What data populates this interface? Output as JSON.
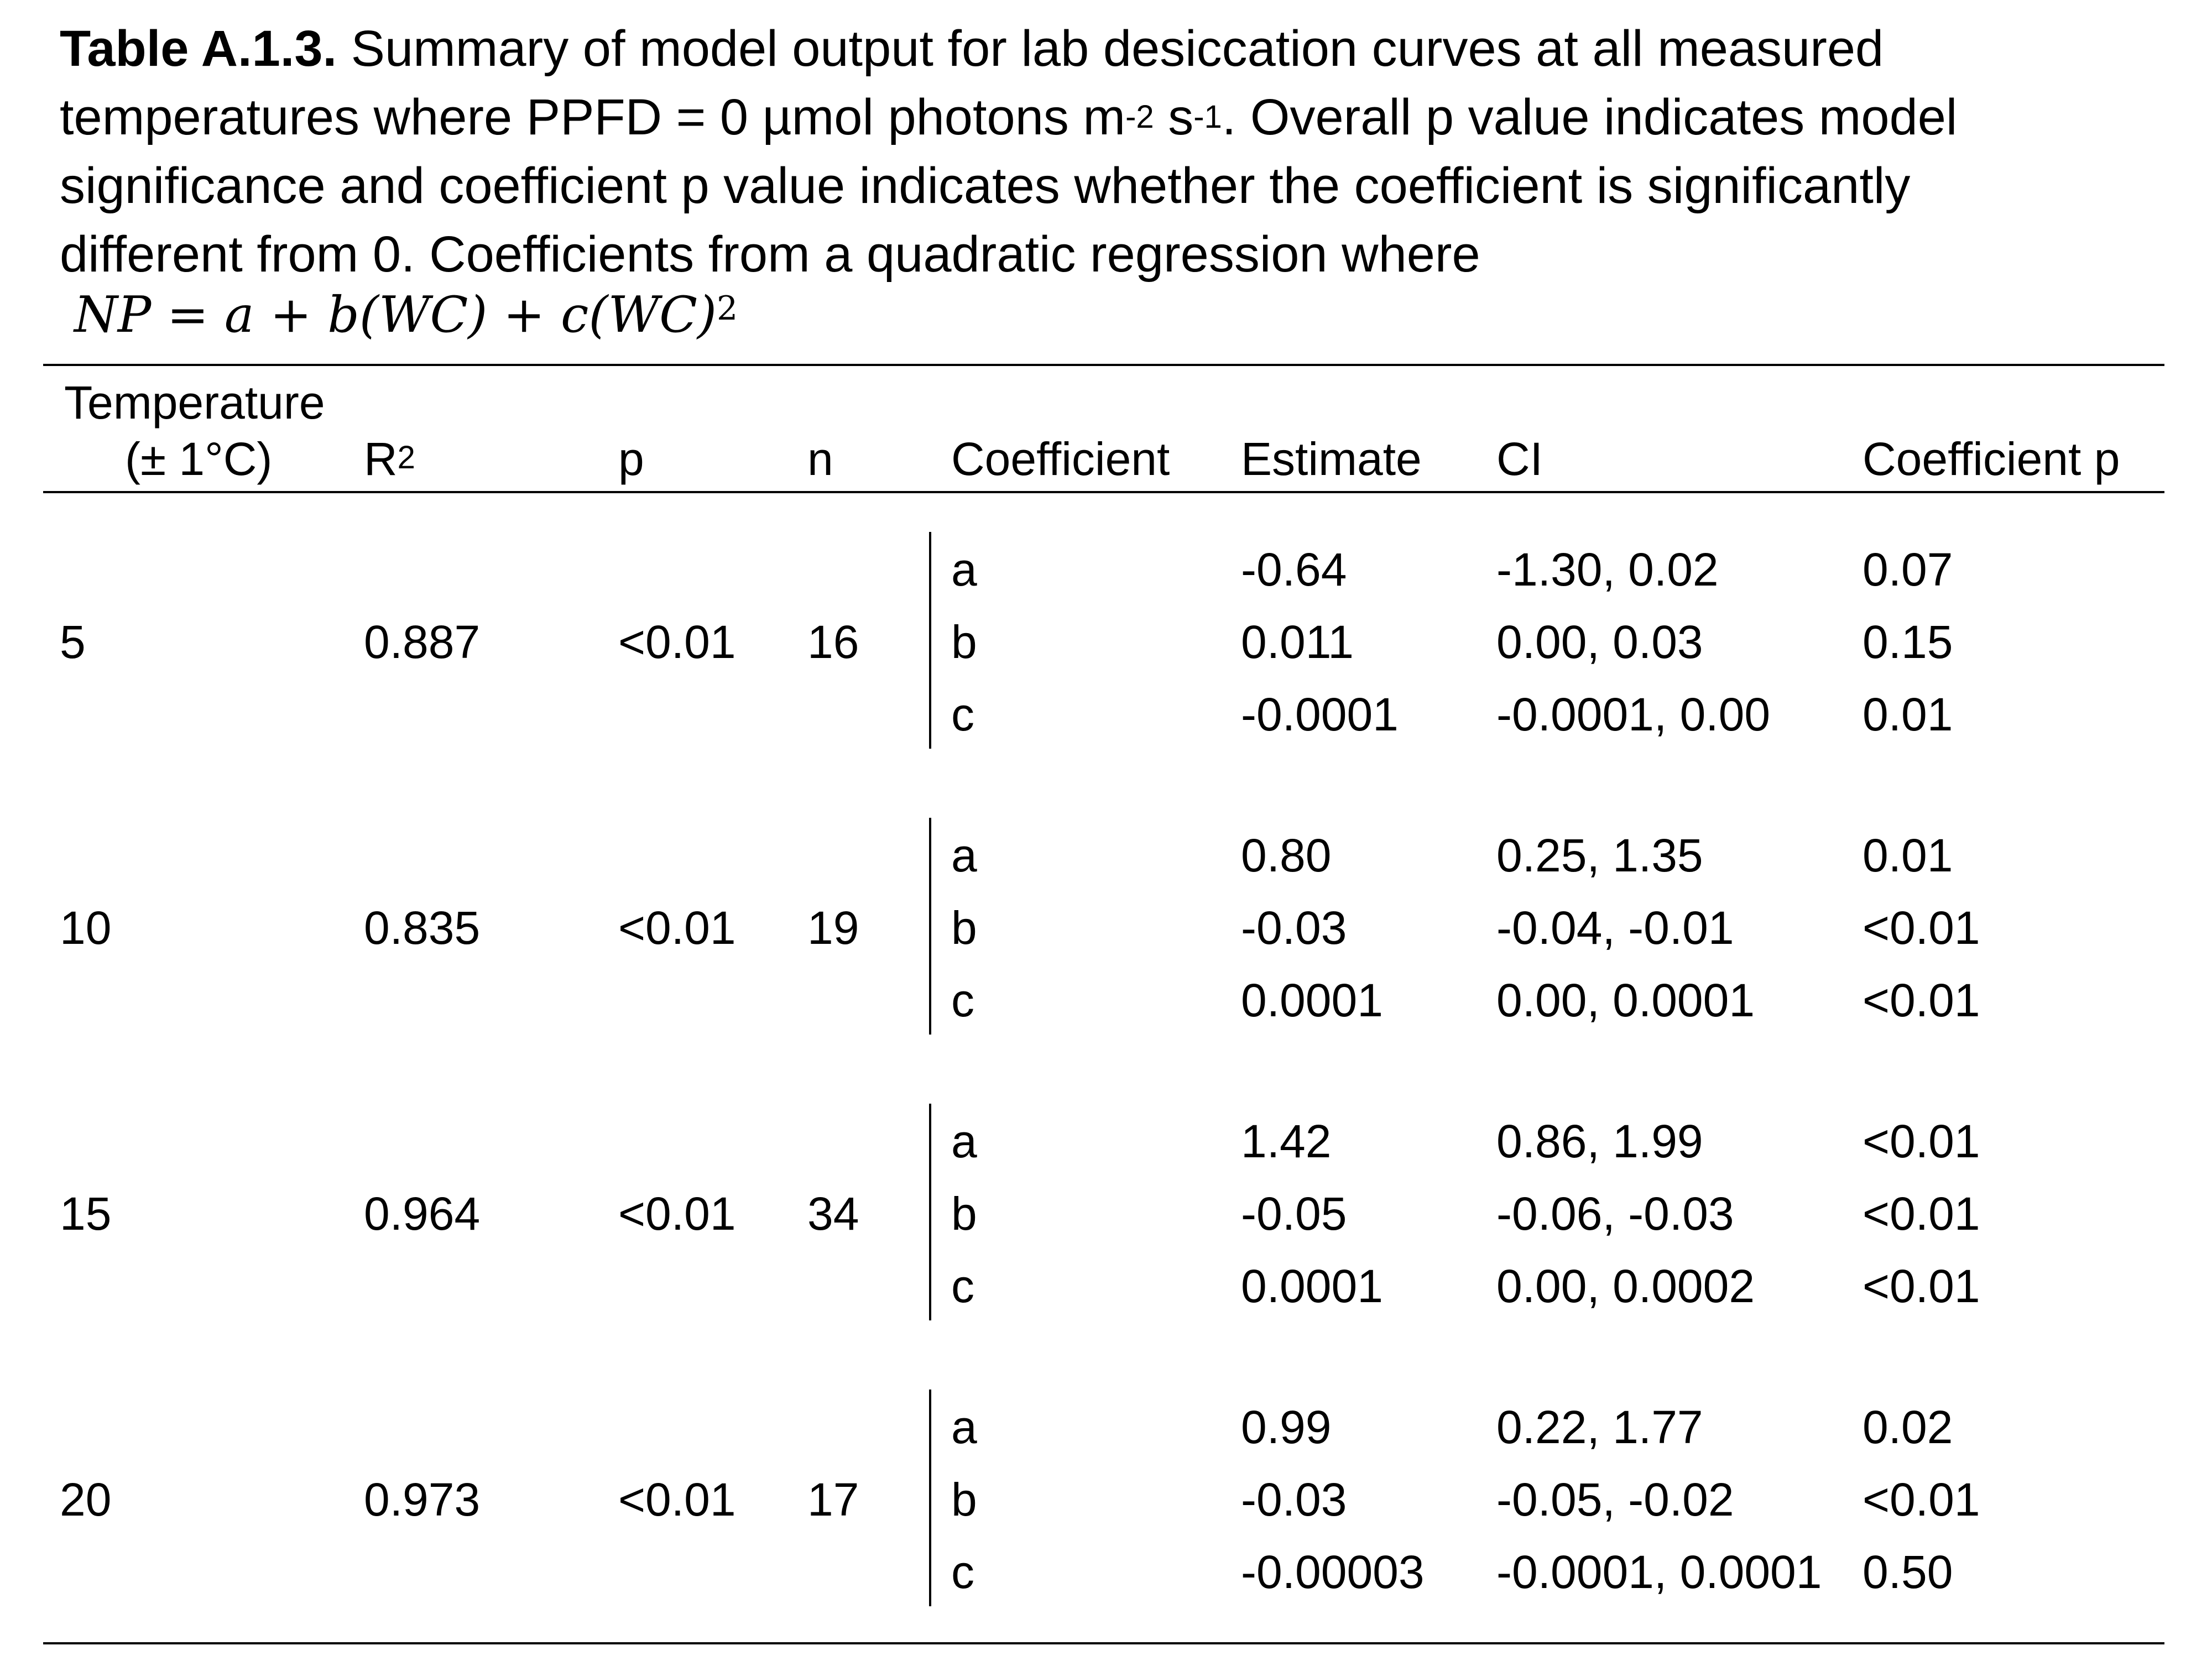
{
  "caption": {
    "label": "Table A.1.3.",
    "line1": " Summary of model output for lab desiccation curves at all measured",
    "line2_pre": "temperatures where PPFD = 0 µmol photons m",
    "sup1": "-2",
    "line2_mid": " s",
    "sup2": "-1",
    "line2_post": ". Overall p value indicates model",
    "line3": "significance and coefficient p value indicates whether the coefficient is significantly",
    "line4": "different from 0. Coefficients from a quadratic regression where",
    "equation": "NP = a + b(WC) + c(WC)",
    "equation_exp": "2"
  },
  "headers": {
    "temp_line1": "Temperature",
    "temp_line2": "(± 1°C)",
    "r2": "R",
    "r2_sup": "2",
    "p": "p",
    "n": "n",
    "coefficient": "Coefficient",
    "estimate": "Estimate",
    "ci": "CI",
    "coef_p": "Coefficient p"
  },
  "groups": [
    {
      "temperature": "5",
      "r2": "0.887",
      "p": "<0.01",
      "n": "16",
      "rows": [
        {
          "coef": "a",
          "estimate": "-0.64",
          "ci": "-1.30, 0.02",
          "coef_p": "0.07"
        },
        {
          "coef": "b",
          "estimate": "0.011",
          "ci": "0.00, 0.03",
          "coef_p": "0.15"
        },
        {
          "coef": "c",
          "estimate": "-0.0001",
          "ci": "-0.0001, 0.00",
          "coef_p": "0.01"
        }
      ]
    },
    {
      "temperature": "10",
      "r2": "0.835",
      "p": "<0.01",
      "n": "19",
      "rows": [
        {
          "coef": "a",
          "estimate": "0.80",
          "ci": "0.25, 1.35",
          "coef_p": "0.01"
        },
        {
          "coef": "b",
          "estimate": "-0.03",
          "ci": "-0.04, -0.01",
          "coef_p": "<0.01"
        },
        {
          "coef": "c",
          "estimate": "0.0001",
          "ci": "0.00, 0.0001",
          "coef_p": "<0.01"
        }
      ]
    },
    {
      "temperature": "15",
      "r2": "0.964",
      "p": "<0.01",
      "n": "34",
      "rows": [
        {
          "coef": "a",
          "estimate": "1.42",
          "ci": "0.86, 1.99",
          "coef_p": "<0.01"
        },
        {
          "coef": "b",
          "estimate": "-0.05",
          "ci": "-0.06, -0.03",
          "coef_p": "<0.01"
        },
        {
          "coef": "c",
          "estimate": "0.0001",
          "ci": "0.00, 0.0002",
          "coef_p": "<0.01"
        }
      ]
    },
    {
      "temperature": "20",
      "r2": "0.973",
      "p": "<0.01",
      "n": "17",
      "rows": [
        {
          "coef": "a",
          "estimate": "0.99",
          "ci": "0.22, 1.77",
          "coef_p": "0.02"
        },
        {
          "coef": "b",
          "estimate": "-0.03",
          "ci": "-0.05, -0.02",
          "coef_p": "<0.01"
        },
        {
          "coef": "c",
          "estimate": "-0.00003",
          "ci": "-0.0001, 0.0001",
          "coef_p": "0.50"
        }
      ]
    }
  ]
}
